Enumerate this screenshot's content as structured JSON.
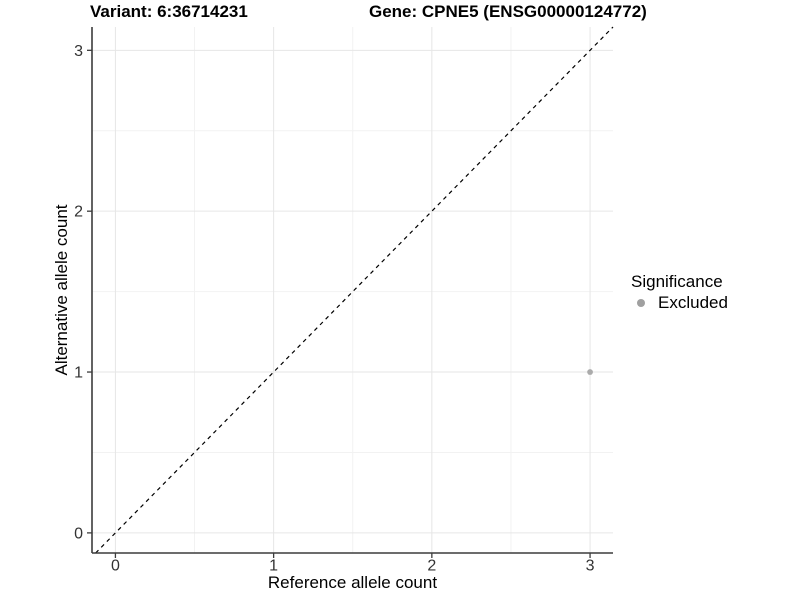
{
  "titles": {
    "variant": "Variant: 6:36714231",
    "gene": "Gene: CPNE5 (ENSG00000124772)"
  },
  "legend": {
    "title": "Significance",
    "position": "right",
    "entries": [
      {
        "label": "Excluded",
        "color": "#a0a0a0"
      }
    ]
  },
  "chart_data": {
    "type": "scatter",
    "xlabel": "Reference allele count",
    "ylabel": "Alternative allele count",
    "xticks": [
      0,
      1,
      2,
      3
    ],
    "yticks": [
      0,
      1,
      2,
      3
    ],
    "minor_xticks": [
      0.5,
      1.5,
      2.5
    ],
    "minor_yticks": [
      0.5,
      1.5,
      2.5
    ],
    "xlim": [
      -0.148,
      3.145
    ],
    "ylim": [
      -0.125,
      3.145
    ],
    "grid": "major+minor",
    "legend_position": "right",
    "series": [
      {
        "name": "Excluded",
        "color": "#ababab",
        "points": [
          {
            "x": 3,
            "y": 1
          }
        ]
      }
    ],
    "reference_line": {
      "kind": "identity y=x",
      "style": "dashed",
      "color": "#000000"
    },
    "colors": {
      "major_grid": "#e6e6e6",
      "minor_grid": "#f2f2f2",
      "axis_line": "#3c3c3c",
      "tick_label": "#333333",
      "point": "#ababab"
    }
  }
}
